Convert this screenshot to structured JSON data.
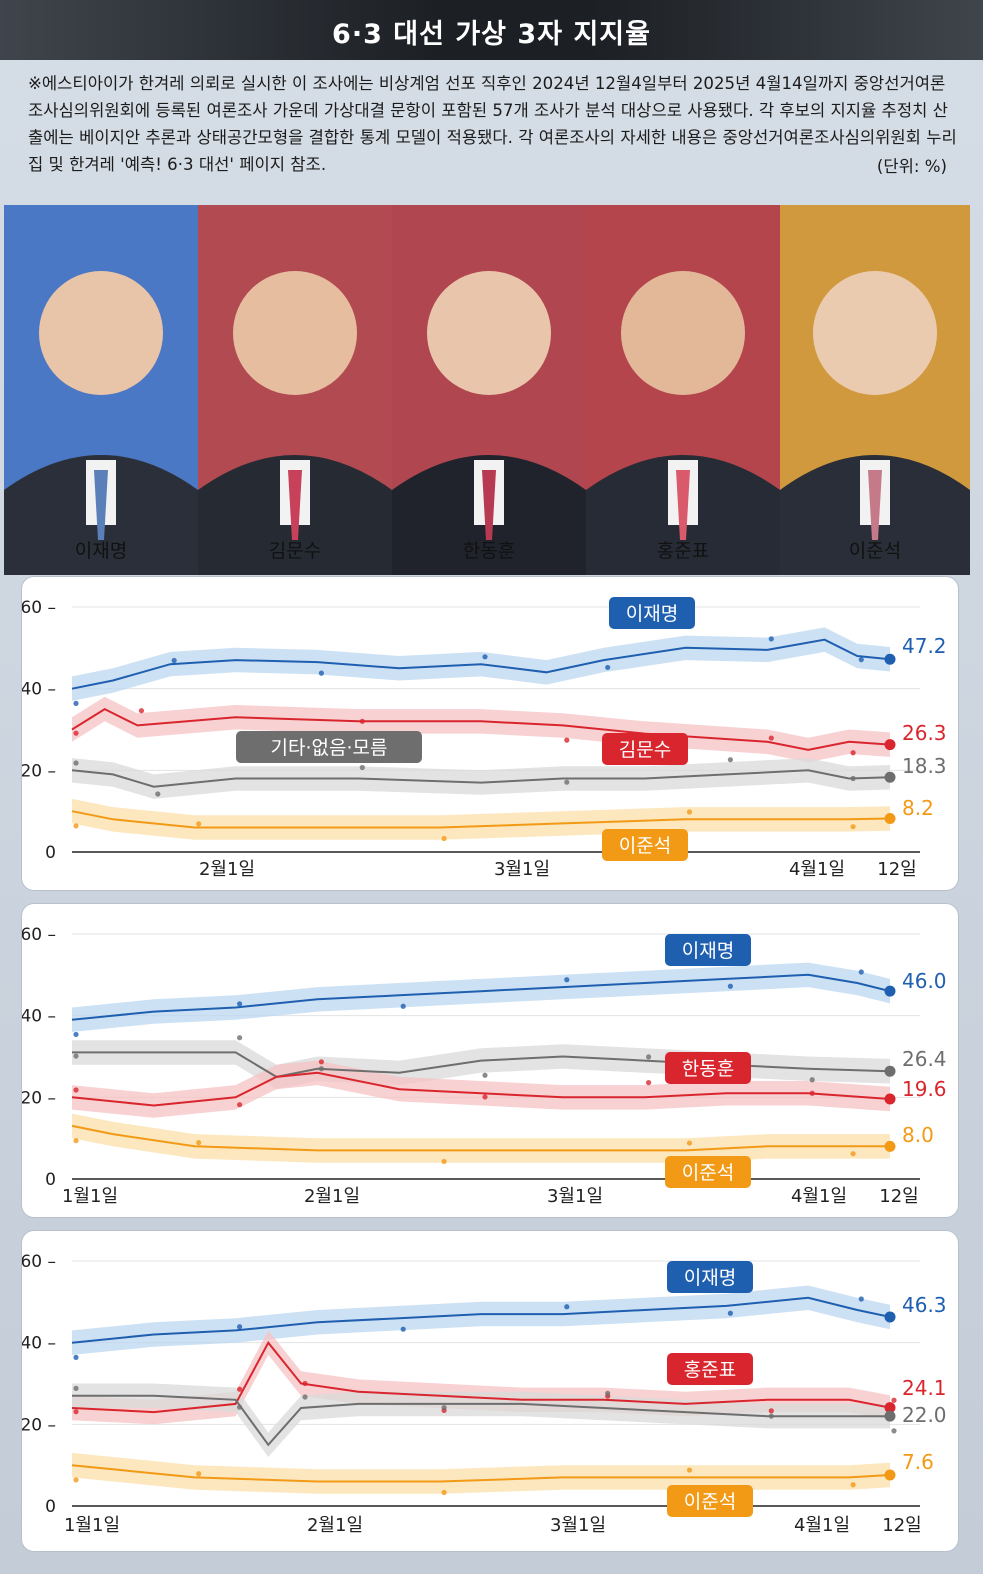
{
  "title": "6·3 대선 가상 3자 지지율",
  "note": "※에스티아이가 한겨레 의뢰로 실시한 이 조사에는 비상계엄 선포 직후인 2024년 12월4일부터 2025년 4월14일까지 중앙선거여론조사심의위원회에 등록된 여론조사 가운데 가상대결 문항이 포함된 57개 조사가 분석 대상으로 사용됐다. 각 후보의 지지율 추정치 산출에는 베이지안 추론과 상태공간모형을 결합한 통계 모델이 적용됐다. 각 여론조사의 자세한 내용은 중앙선거여론조사심의위원회 누리집 및 한겨레 '예측! 6·3 대선' 페이지 참조.",
  "unit": "(단위: %)",
  "candidates": [
    {
      "name": "이재명",
      "bg": "#4a78c4"
    },
    {
      "name": "김문수",
      "bg": "#b24a52"
    },
    {
      "name": "한동훈",
      "bg": "#b04650"
    },
    {
      "name": "홍준표",
      "bg": "#b4454d"
    },
    {
      "name": "이준석",
      "bg": "#d1993e"
    }
  ],
  "colors": {
    "lee": "#1f5fb0",
    "red": "#d9262e",
    "gray": "#6e6e6e",
    "orange": "#f29a16"
  },
  "chart_data": [
    {
      "type": "line",
      "ylim": [
        0,
        60
      ],
      "yticks": [
        0,
        20,
        40,
        60
      ],
      "xticks": [
        "2월1일",
        "3월1일",
        "4월1일",
        "12일"
      ],
      "series": [
        {
          "name": "이재명",
          "color_key": "lee",
          "final_label": "47.2",
          "values": [
            [
              0,
              40
            ],
            [
              0.05,
              42
            ],
            [
              0.12,
              46
            ],
            [
              0.2,
              47
            ],
            [
              0.3,
              46.5
            ],
            [
              0.4,
              45
            ],
            [
              0.5,
              46
            ],
            [
              0.58,
              44
            ],
            [
              0.65,
              47
            ],
            [
              0.75,
              50
            ],
            [
              0.85,
              49.5
            ],
            [
              0.92,
              52
            ],
            [
              0.96,
              48
            ],
            [
              1,
              47.2
            ]
          ]
        },
        {
          "name": "김문수",
          "color_key": "red",
          "final_label": "26.3",
          "values": [
            [
              0,
              30
            ],
            [
              0.04,
              35
            ],
            [
              0.08,
              31
            ],
            [
              0.2,
              33
            ],
            [
              0.35,
              32
            ],
            [
              0.5,
              32
            ],
            [
              0.6,
              31
            ],
            [
              0.7,
              29
            ],
            [
              0.85,
              27
            ],
            [
              0.9,
              25
            ],
            [
              0.95,
              27
            ],
            [
              1,
              26.3
            ]
          ]
        },
        {
          "name": "기타·없음·모름",
          "color_key": "gray",
          "final_label": "18.3",
          "values": [
            [
              0,
              20
            ],
            [
              0.05,
              19
            ],
            [
              0.1,
              16
            ],
            [
              0.2,
              18
            ],
            [
              0.35,
              18
            ],
            [
              0.5,
              17
            ],
            [
              0.6,
              18
            ],
            [
              0.7,
              18
            ],
            [
              0.8,
              19
            ],
            [
              0.9,
              20
            ],
            [
              0.95,
              18
            ],
            [
              1,
              18.3
            ]
          ]
        },
        {
          "name": "이준석",
          "color_key": "orange",
          "final_label": "8.2",
          "values": [
            [
              0,
              10
            ],
            [
              0.05,
              8
            ],
            [
              0.15,
              6
            ],
            [
              0.3,
              6
            ],
            [
              0.45,
              6
            ],
            [
              0.6,
              7
            ],
            [
              0.75,
              8
            ],
            [
              0.85,
              8
            ],
            [
              0.95,
              8
            ],
            [
              1,
              8.2
            ]
          ]
        }
      ]
    },
    {
      "type": "line",
      "ylim": [
        0,
        60
      ],
      "yticks": [
        0,
        20,
        40,
        60
      ],
      "xticks": [
        "1월1일",
        "2월1일",
        "3월1일",
        "4월1일",
        "12일"
      ],
      "series": [
        {
          "name": "이재명",
          "color_key": "lee",
          "final_label": "46.0",
          "values": [
            [
              0,
              39
            ],
            [
              0.1,
              41
            ],
            [
              0.2,
              42
            ],
            [
              0.3,
              44
            ],
            [
              0.4,
              45
            ],
            [
              0.5,
              46
            ],
            [
              0.6,
              47
            ],
            [
              0.7,
              48
            ],
            [
              0.8,
              49
            ],
            [
              0.9,
              50
            ],
            [
              0.96,
              48
            ],
            [
              1,
              46.0
            ]
          ]
        },
        {
          "name": "기타·없음·모름",
          "color_key": "gray",
          "final_label": "26.4",
          "values": [
            [
              0,
              31
            ],
            [
              0.1,
              31
            ],
            [
              0.2,
              31
            ],
            [
              0.25,
              25
            ],
            [
              0.3,
              27
            ],
            [
              0.4,
              26
            ],
            [
              0.5,
              29
            ],
            [
              0.6,
              30
            ],
            [
              0.7,
              29
            ],
            [
              0.8,
              28
            ],
            [
              0.9,
              27
            ],
            [
              1,
              26.4
            ]
          ]
        },
        {
          "name": "한동훈",
          "color_key": "red",
          "final_label": "19.6",
          "values": [
            [
              0,
              20
            ],
            [
              0.1,
              18
            ],
            [
              0.2,
              20
            ],
            [
              0.25,
              25
            ],
            [
              0.3,
              26
            ],
            [
              0.4,
              22
            ],
            [
              0.5,
              21
            ],
            [
              0.6,
              20
            ],
            [
              0.7,
              20
            ],
            [
              0.8,
              21
            ],
            [
              0.9,
              21
            ],
            [
              1,
              19.6
            ]
          ]
        },
        {
          "name": "이준석",
          "color_key": "orange",
          "final_label": "8.0",
          "values": [
            [
              0,
              13
            ],
            [
              0.05,
              11
            ],
            [
              0.15,
              8
            ],
            [
              0.3,
              7
            ],
            [
              0.45,
              7
            ],
            [
              0.6,
              7
            ],
            [
              0.75,
              7
            ],
            [
              0.85,
              8
            ],
            [
              0.95,
              8
            ],
            [
              1,
              8.0
            ]
          ]
        }
      ]
    },
    {
      "type": "line",
      "ylim": [
        0,
        60
      ],
      "yticks": [
        0,
        20,
        40,
        60
      ],
      "xticks": [
        "1월1일",
        "2월1일",
        "3월1일",
        "4월1일",
        "12일"
      ],
      "series": [
        {
          "name": "이재명",
          "color_key": "lee",
          "final_label": "46.3",
          "values": [
            [
              0,
              40
            ],
            [
              0.1,
              42
            ],
            [
              0.2,
              43
            ],
            [
              0.3,
              45
            ],
            [
              0.4,
              46
            ],
            [
              0.5,
              47
            ],
            [
              0.6,
              47
            ],
            [
              0.7,
              48
            ],
            [
              0.8,
              49
            ],
            [
              0.9,
              51
            ],
            [
              0.96,
              48
            ],
            [
              1,
              46.3
            ]
          ]
        },
        {
          "name": "홍준표",
          "color_key": "red",
          "final_label": "24.1",
          "values": [
            [
              0,
              24
            ],
            [
              0.1,
              23
            ],
            [
              0.2,
              25
            ],
            [
              0.24,
              40
            ],
            [
              0.28,
              30
            ],
            [
              0.35,
              28
            ],
            [
              0.45,
              27
            ],
            [
              0.55,
              26
            ],
            [
              0.65,
              26
            ],
            [
              0.75,
              25
            ],
            [
              0.85,
              26
            ],
            [
              0.95,
              26
            ],
            [
              1,
              24.1
            ]
          ]
        },
        {
          "name": "기타·없음·모름",
          "color_key": "gray",
          "final_label": "22.0",
          "values": [
            [
              0,
              27
            ],
            [
              0.1,
              27
            ],
            [
              0.2,
              26
            ],
            [
              0.24,
              15
            ],
            [
              0.28,
              24
            ],
            [
              0.35,
              25
            ],
            [
              0.45,
              25
            ],
            [
              0.55,
              25
            ],
            [
              0.65,
              24
            ],
            [
              0.75,
              23
            ],
            [
              0.85,
              22
            ],
            [
              0.95,
              22
            ],
            [
              1,
              22.0
            ]
          ]
        },
        {
          "name": "이준석",
          "color_key": "orange",
          "final_label": "7.6",
          "values": [
            [
              0,
              10
            ],
            [
              0.05,
              9
            ],
            [
              0.15,
              7
            ],
            [
              0.3,
              6
            ],
            [
              0.45,
              6
            ],
            [
              0.6,
              7
            ],
            [
              0.75,
              7
            ],
            [
              0.85,
              7
            ],
            [
              0.95,
              7
            ],
            [
              1,
              7.6
            ]
          ]
        }
      ]
    }
  ]
}
